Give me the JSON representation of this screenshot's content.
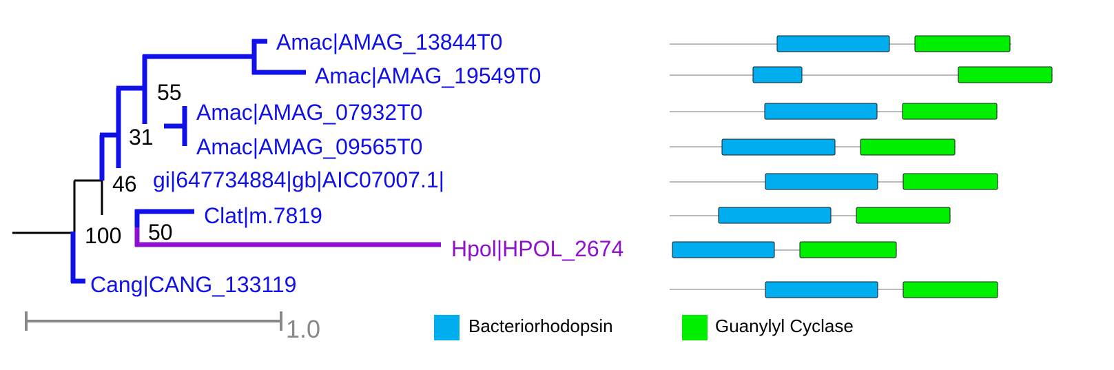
{
  "colors": {
    "clade_blue": "#1010e8",
    "hpol_purple": "#9010d0",
    "root_black": "#000000",
    "backbone_gray": "#bbbbbb",
    "bacteriorhodopsin": "#00aeef",
    "guanylyl_cyclase": "#00ee00",
    "scale_gray": "#888888"
  },
  "leaves": [
    "Amac|AMAG_13844T0",
    "Amac|AMAG_19549T0",
    "Amac|AMAG_07932T0",
    "Amac|AMAG_09565T0",
    "gi|647734884|gb|AIC07007.1|",
    "Clat|m.7819",
    "Hpol|HPOL_2674",
    "Cang|CANG_133119"
  ],
  "supports": [
    "55",
    "31",
    "46",
    "100",
    "50"
  ],
  "scale": {
    "label": "1.0"
  },
  "legend": {
    "bacteriorhodopsin": "Bacteriorhodopsin",
    "guanylyl_cyclase": "Guanylyl Cyclase"
  }
}
